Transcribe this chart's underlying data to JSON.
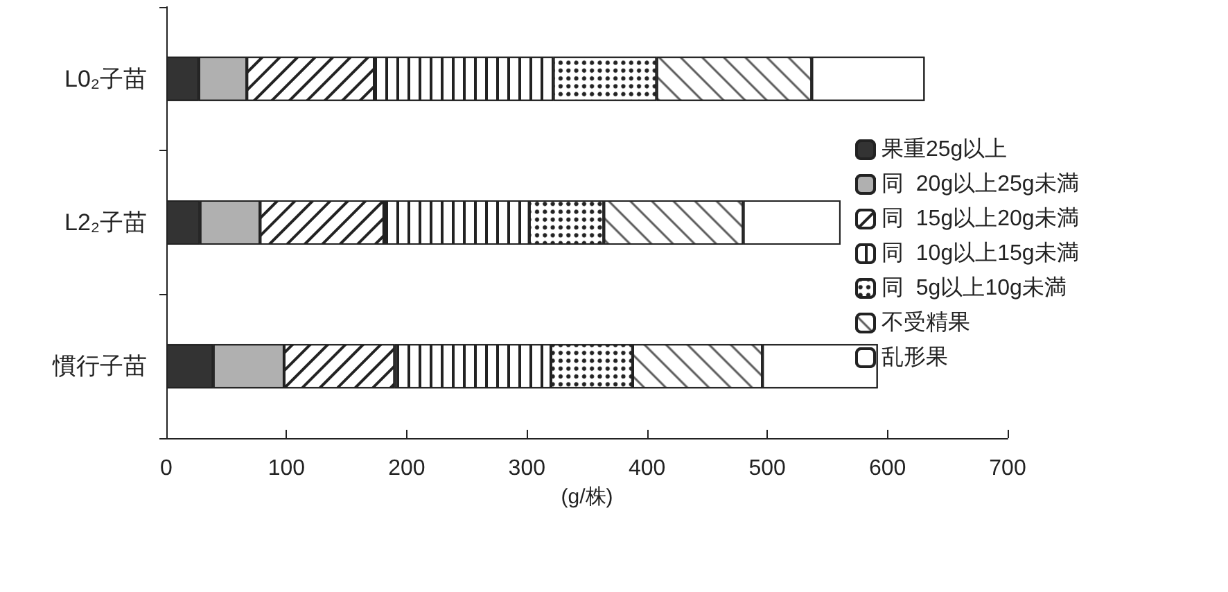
{
  "chart_data": {
    "type": "bar",
    "orientation": "horizontal",
    "stacked": true,
    "xlabel": "(g/株)",
    "categories": [
      "L0₂子苗",
      "L2₂子苗",
      "慣行子苗"
    ],
    "series": [
      {
        "name": "果重25g以上",
        "color": "#333333",
        "values": [
          27,
          28,
          39
        ]
      },
      {
        "name": "同  20g以上25g未満",
        "color": "#b0b0b0",
        "values": [
          40,
          50,
          59
        ]
      },
      {
        "name": "同  15g以上20g未満",
        "color": "#ffffff",
        "values": [
          106,
          103,
          92
        ]
      },
      {
        "name": "同  10g以上15g未満",
        "color": "#ffffff",
        "values": [
          149,
          121,
          130
        ]
      },
      {
        "name": "同  5g以上10g未満",
        "color": "#ffffff",
        "values": [
          86,
          62,
          68
        ]
      },
      {
        "name": "不受精果",
        "color": "#ffffff",
        "values": [
          129,
          116,
          108
        ]
      },
      {
        "name": "乱形果",
        "color": "#ffffff",
        "values": [
          94,
          81,
          96
        ]
      }
    ],
    "xlim": [
      0,
      700
    ],
    "xticks": [
      0,
      100,
      200,
      300,
      400,
      500,
      600,
      700
    ],
    "grid": false,
    "legend": "right"
  }
}
